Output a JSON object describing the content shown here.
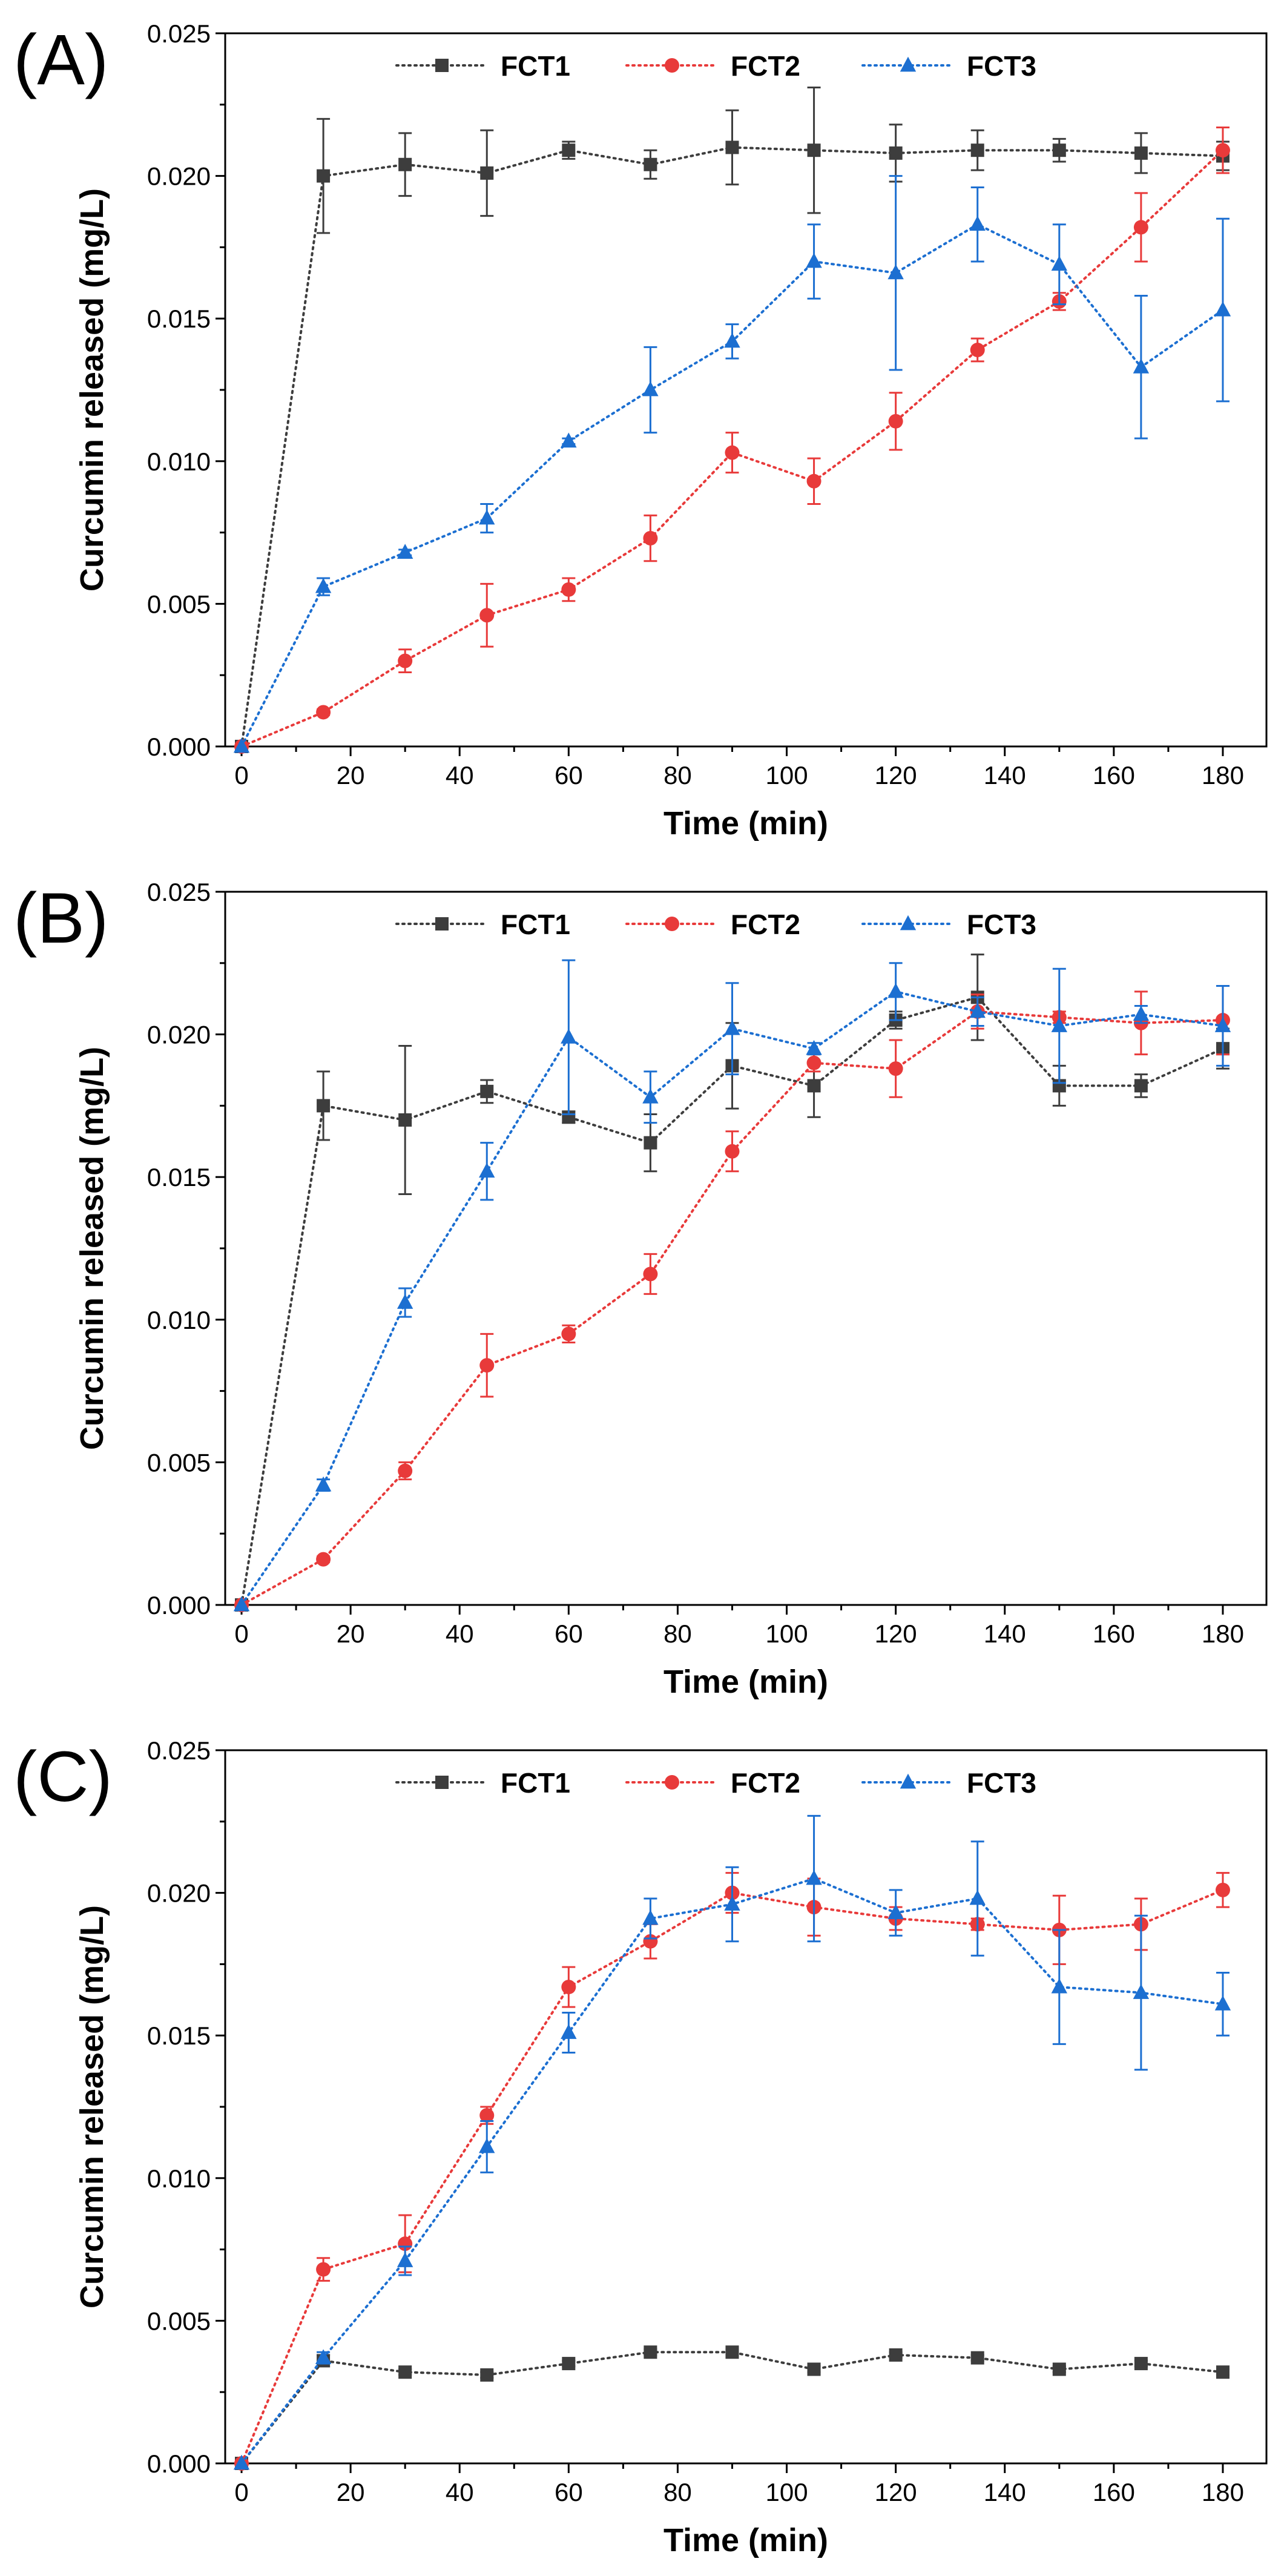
{
  "panel_labels": [
    "(A)",
    "(B)",
    "(C)"
  ],
  "chart_data": [
    {
      "type": "line",
      "title": "(A)",
      "xlabel": "Time (min)",
      "ylabel": "Curcumin released (mg/L)",
      "xlim": [
        -3,
        188
      ],
      "ylim": [
        0,
        0.025
      ],
      "xticks": [
        0,
        20,
        40,
        60,
        80,
        100,
        120,
        140,
        160,
        180
      ],
      "yticks": [
        0.0,
        0.005,
        0.01,
        0.015,
        0.02,
        0.025
      ],
      "ytick_labels": [
        "0.000",
        "0.005",
        "0.010",
        "0.015",
        "0.020",
        "0.025"
      ],
      "grid": false,
      "legend_position": "top",
      "x": [
        0,
        15,
        30,
        45,
        60,
        75,
        90,
        105,
        120,
        135,
        150,
        165,
        180
      ],
      "series": [
        {
          "name": "FCT1",
          "color": "#3d3d3d",
          "marker": "square",
          "values": [
            0,
            0.02,
            0.0204,
            0.0201,
            0.0209,
            0.0204,
            0.021,
            0.0209,
            0.0208,
            0.0209,
            0.0209,
            0.0208,
            0.0207
          ],
          "errors": [
            0,
            0.002,
            0.0011,
            0.0015,
            0.0003,
            0.0005,
            0.0013,
            0.0022,
            0.001,
            0.0007,
            0.0004,
            0.0007,
            0.0005
          ]
        },
        {
          "name": "FCT2",
          "color": "#e83a3a",
          "marker": "circle",
          "values": [
            0,
            0.0012,
            0.003,
            0.0046,
            0.0055,
            0.0073,
            0.0103,
            0.0093,
            0.0114,
            0.0139,
            0.0156,
            0.0182,
            0.0209
          ],
          "errors": [
            0,
            0.0001,
            0.0004,
            0.0011,
            0.0004,
            0.0008,
            0.0007,
            0.0008,
            0.001,
            0.0004,
            0.0003,
            0.0012,
            0.0008
          ]
        },
        {
          "name": "FCT3",
          "color": "#1c6fd1",
          "marker": "triangle",
          "values": [
            0,
            0.0056,
            0.0068,
            0.008,
            0.0107,
            0.0125,
            0.0142,
            0.017,
            0.0166,
            0.0183,
            0.0169,
            0.0133,
            0.0153
          ],
          "errors": [
            0,
            0.0003,
            0.0001,
            0.0005,
            0.0001,
            0.0015,
            0.0006,
            0.0013,
            0.0034,
            0.0013,
            0.0014,
            0.0025,
            0.0032
          ]
        }
      ]
    },
    {
      "type": "line",
      "title": "(B)",
      "xlabel": "Time (min)",
      "ylabel": "Curcumin released (mg/L)",
      "xlim": [
        -3,
        188
      ],
      "ylim": [
        0,
        0.025
      ],
      "xticks": [
        0,
        20,
        40,
        60,
        80,
        100,
        120,
        140,
        160,
        180
      ],
      "yticks": [
        0.0,
        0.005,
        0.01,
        0.015,
        0.02,
        0.025
      ],
      "ytick_labels": [
        "0.000",
        "0.005",
        "0.010",
        "0.015",
        "0.020",
        "0.025"
      ],
      "grid": false,
      "legend_position": "top",
      "x": [
        0,
        15,
        30,
        45,
        60,
        75,
        90,
        105,
        120,
        135,
        150,
        165,
        180
      ],
      "series": [
        {
          "name": "FCT1",
          "color": "#3d3d3d",
          "marker": "square",
          "values": [
            0,
            0.0175,
            0.017,
            0.018,
            0.0171,
            0.0162,
            0.0189,
            0.0182,
            0.0205,
            0.0213,
            0.0182,
            0.0182,
            0.0195
          ],
          "errors": [
            0,
            0.0012,
            0.0026,
            0.0004,
            0.0002,
            0.001,
            0.0015,
            0.0011,
            0.0003,
            0.0015,
            0.0007,
            0.0004,
            0.0007
          ]
        },
        {
          "name": "FCT2",
          "color": "#e83a3a",
          "marker": "circle",
          "values": [
            0,
            0.0016,
            0.0047,
            0.0084,
            0.0095,
            0.0116,
            0.0159,
            0.019,
            0.0188,
            0.0208,
            0.0206,
            0.0204,
            0.0205
          ],
          "errors": [
            0,
            0.0001,
            0.0003,
            0.0011,
            0.0003,
            0.0007,
            0.0007,
            0.0003,
            0.001,
            0.0006,
            0.0002,
            0.0011,
            0.0012
          ]
        },
        {
          "name": "FCT3",
          "color": "#1c6fd1",
          "marker": "triangle",
          "values": [
            0,
            0.0042,
            0.0106,
            0.0152,
            0.0199,
            0.0178,
            0.0202,
            0.0195,
            0.0215,
            0.0208,
            0.0203,
            0.0207,
            0.0203
          ],
          "errors": [
            0,
            0.0002,
            0.0005,
            0.001,
            0.0027,
            0.0009,
            0.0016,
            0.0002,
            0.001,
            0.0005,
            0.002,
            0.0003,
            0.0014
          ]
        }
      ]
    },
    {
      "type": "line",
      "title": "(C)",
      "xlabel": "Time (min)",
      "ylabel": "Curcumin released (mg/L)",
      "xlim": [
        -3,
        188
      ],
      "ylim": [
        0,
        0.025
      ],
      "xticks": [
        0,
        20,
        40,
        60,
        80,
        100,
        120,
        140,
        160,
        180
      ],
      "yticks": [
        0.0,
        0.005,
        0.01,
        0.015,
        0.02,
        0.025
      ],
      "ytick_labels": [
        "0.000",
        "0.005",
        "0.010",
        "0.015",
        "0.020",
        "0.025"
      ],
      "grid": false,
      "legend_position": "top",
      "x": [
        0,
        15,
        30,
        45,
        60,
        75,
        90,
        105,
        120,
        135,
        150,
        165,
        180
      ],
      "series": [
        {
          "name": "FCT1",
          "color": "#3d3d3d",
          "marker": "square",
          "values": [
            0,
            0.0036,
            0.0032,
            0.0031,
            0.0035,
            0.0039,
            0.0039,
            0.0033,
            0.0038,
            0.0037,
            0.0033,
            0.0035,
            0.0032
          ],
          "errors": [
            0,
            0.0002,
            0.0001,
            0.0001,
            0.0001,
            0.0001,
            0.0001,
            0.0001,
            0.0001,
            0.0001,
            0.0001,
            0.0001,
            0.0001
          ]
        },
        {
          "name": "FCT2",
          "color": "#e83a3a",
          "marker": "circle",
          "values": [
            0,
            0.0068,
            0.0077,
            0.0122,
            0.0167,
            0.0183,
            0.02,
            0.0195,
            0.0191,
            0.0189,
            0.0187,
            0.0189,
            0.0201
          ],
          "errors": [
            0,
            0.0004,
            0.001,
            0.0003,
            0.0007,
            0.0006,
            0.0007,
            0.001,
            0.0004,
            0.0002,
            0.0012,
            0.0009,
            0.0006
          ]
        },
        {
          "name": "FCT3",
          "color": "#1c6fd1",
          "marker": "triangle",
          "values": [
            0,
            0.0037,
            0.0071,
            0.0111,
            0.0151,
            0.0191,
            0.0196,
            0.0205,
            0.0193,
            0.0198,
            0.0167,
            0.0165,
            0.0161
          ],
          "errors": [
            0,
            0.0002,
            0.0005,
            0.0009,
            0.0007,
            0.0007,
            0.0013,
            0.0022,
            0.0008,
            0.002,
            0.002,
            0.0027,
            0.0011
          ]
        }
      ]
    }
  ]
}
